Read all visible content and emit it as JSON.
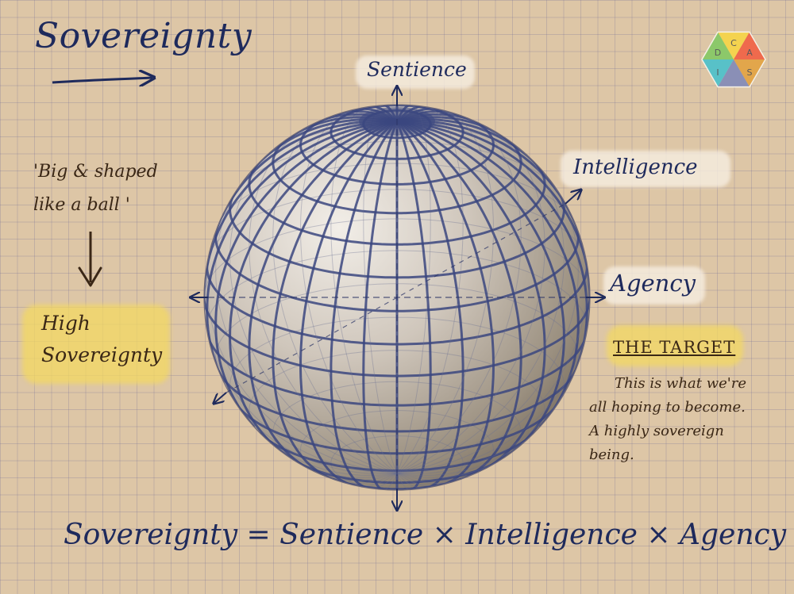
{
  "title": "Sovereignty",
  "axes": {
    "sentience": "Sentience",
    "intelligence": "Intelligence",
    "agency": "Agency"
  },
  "note": {
    "quote": "'Big & shaped like a ball '",
    "result": "High Sovereignty"
  },
  "target": {
    "heading": "THE TARGET",
    "description": "This is what we're all hoping to become. A highly sovereign being."
  },
  "formula": "Sovereignty = Sentience × Intelligence × Agency",
  "logo": {
    "letters": [
      "C",
      "A",
      "S",
      "I",
      "D"
    ]
  },
  "colors": {
    "ink": "#1e2a5c",
    "highlight": "#f3d862",
    "paper": "#ddc6a6"
  }
}
